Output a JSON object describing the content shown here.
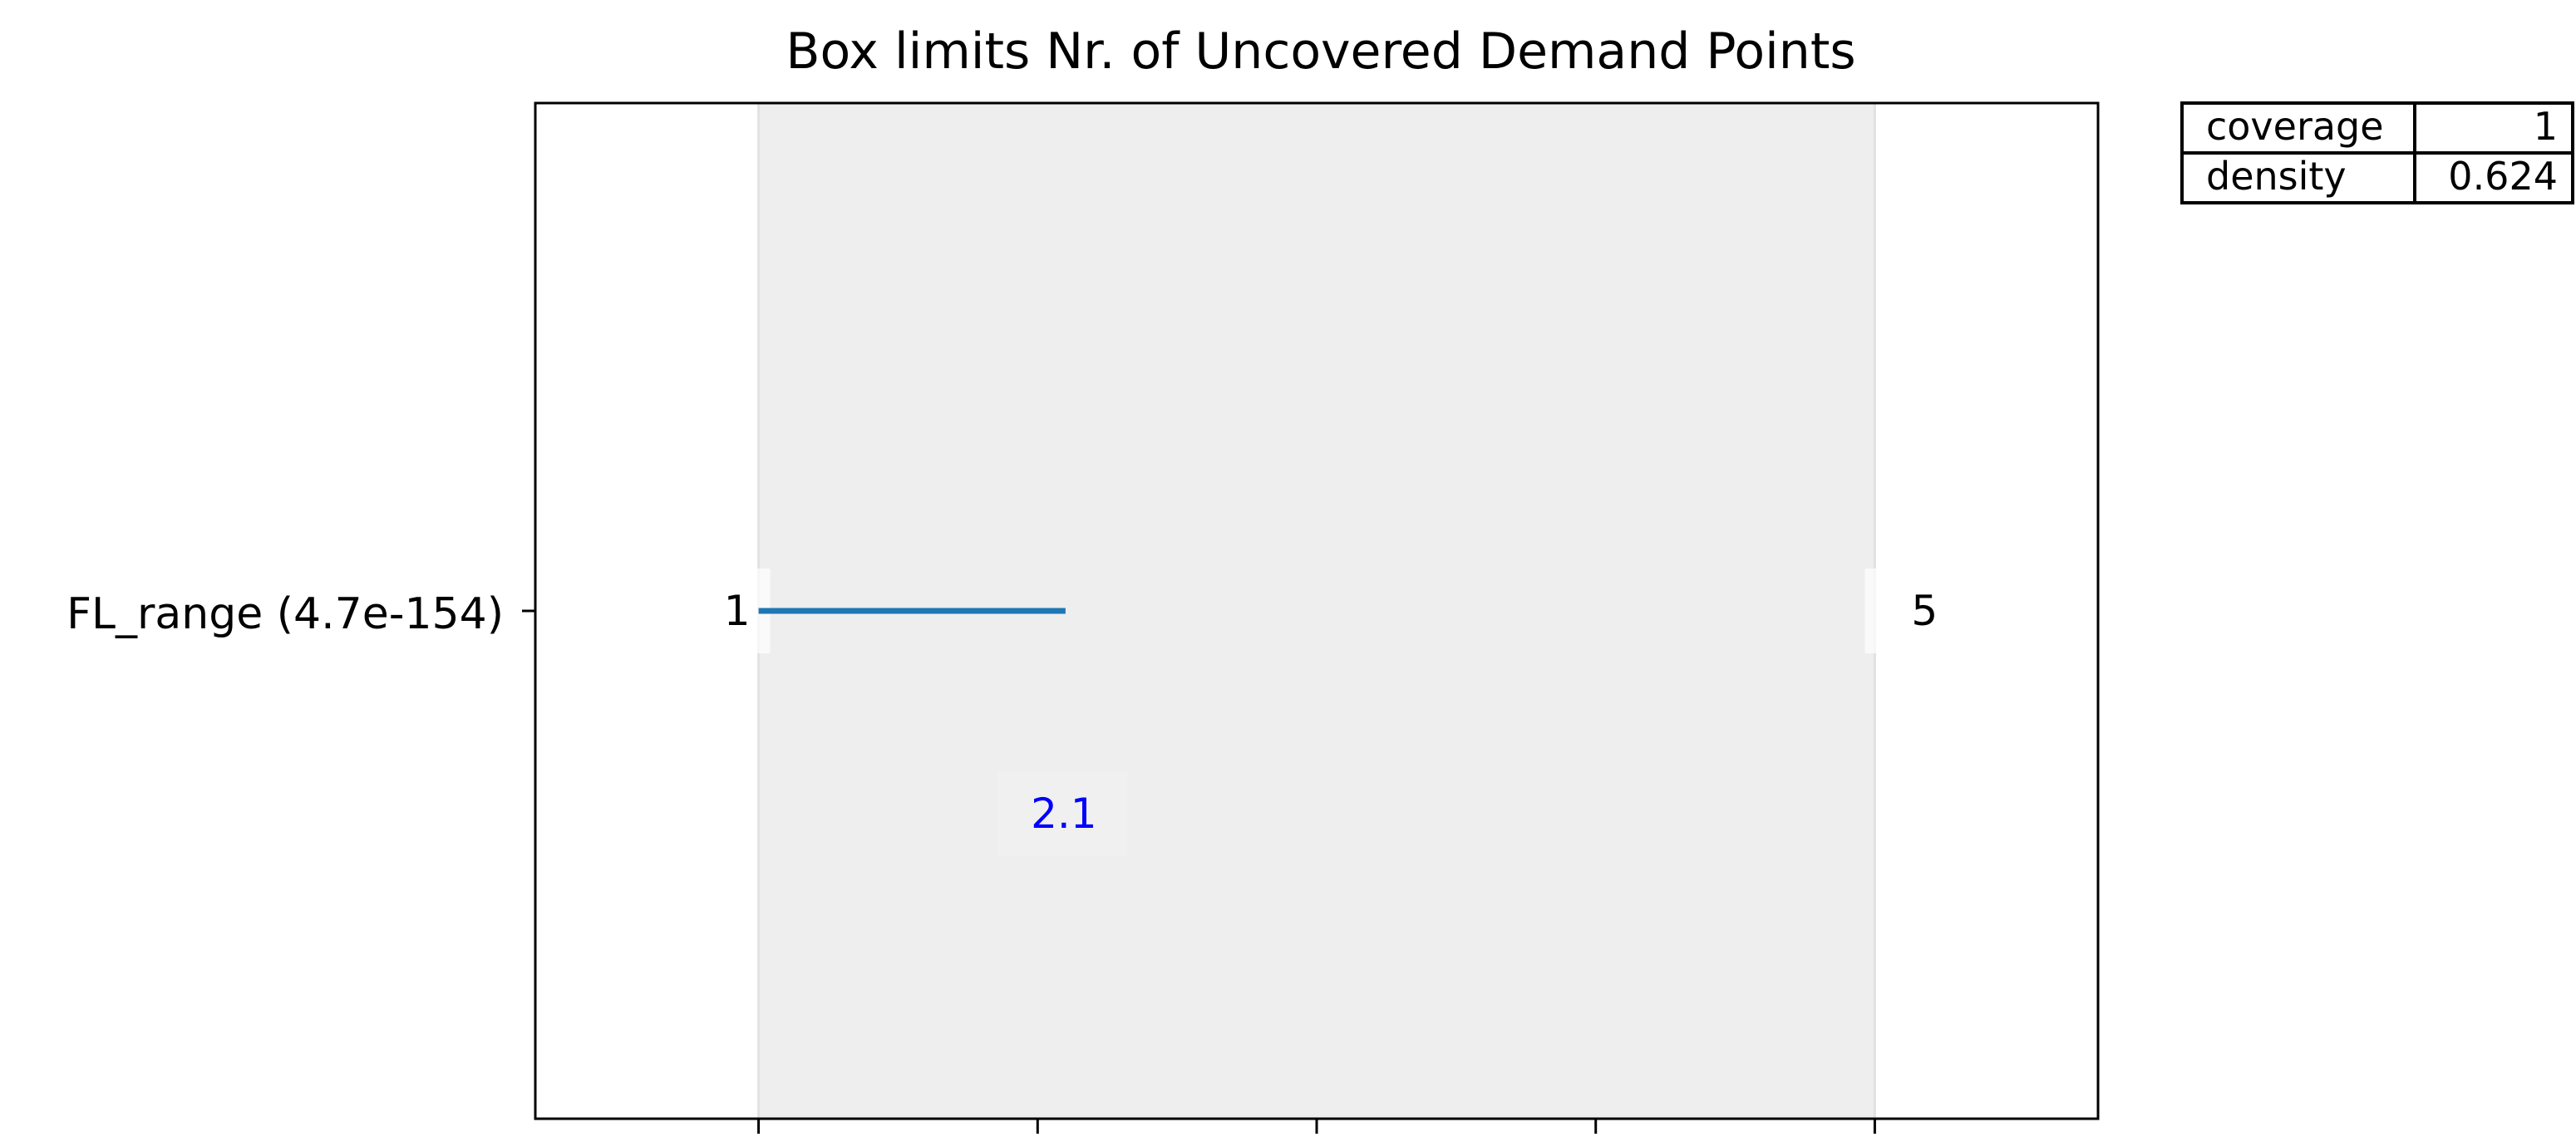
{
  "chart_data": {
    "type": "bar",
    "title": "Box limits Nr. of Uncovered Demand Points",
    "xlim": [
      0.2,
      5.8
    ],
    "x_ticks": [
      1,
      2,
      3,
      4,
      5
    ],
    "grid": false,
    "box": {
      "lower": 1,
      "upper": 5
    },
    "rows": [
      {
        "label": "FL_range (4.7e-154)",
        "lower_label": "1",
        "upper_label": "5",
        "lower_value": 1,
        "upper_value": 2.1,
        "value_label": "2.1"
      }
    ],
    "stats_table": [
      {
        "name": "coverage",
        "value": "1"
      },
      {
        "name": "density",
        "value": "0.624"
      }
    ],
    "colors": {
      "box_fill": "#eeeeee",
      "line": "#1f77b4",
      "value_label": "#0000ff"
    }
  }
}
